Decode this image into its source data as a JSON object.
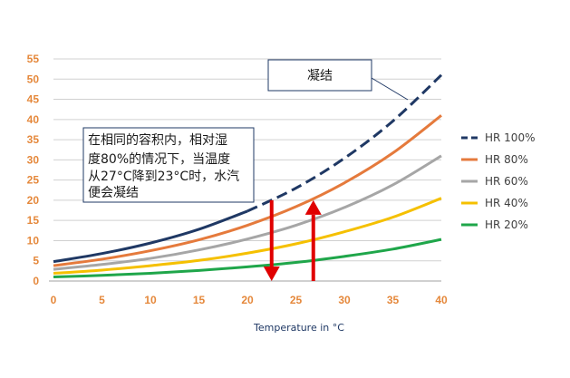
{
  "chart_data": {
    "type": "line",
    "xlabel": "Temperature in °C",
    "ylabel": "",
    "title": "",
    "xlim": [
      0,
      40
    ],
    "ylim": [
      0,
      55
    ],
    "x_ticks": [
      0,
      5,
      10,
      15,
      20,
      25,
      30,
      35,
      40
    ],
    "y_ticks": [
      0,
      5,
      10,
      15,
      20,
      25,
      30,
      35,
      40,
      45,
      50,
      55
    ],
    "grid": "horizontal",
    "legend_position": "right",
    "series": [
      {
        "name": "HR 100%",
        "color": "#1F3864",
        "dash": "solid-then-dashed",
        "x": [
          0,
          5,
          10,
          15,
          20,
          25,
          30,
          35,
          40
        ],
        "values": [
          4.8,
          6.8,
          9.4,
          12.8,
          17.3,
          23.0,
          30.4,
          39.6,
          51.0
        ]
      },
      {
        "name": "HR 80%",
        "color": "#E57A3C",
        "dash": "solid",
        "x": [
          0,
          5,
          10,
          15,
          20,
          25,
          30,
          35,
          40
        ],
        "values": [
          3.8,
          5.4,
          7.5,
          10.2,
          13.8,
          18.4,
          24.3,
          31.7,
          41.0
        ]
      },
      {
        "name": "HR 60%",
        "color": "#A6A6A6",
        "dash": "solid",
        "x": [
          0,
          5,
          10,
          15,
          20,
          25,
          30,
          35,
          40
        ],
        "values": [
          2.9,
          4.1,
          5.6,
          7.7,
          10.4,
          13.8,
          18.2,
          23.8,
          31.0
        ]
      },
      {
        "name": "HR 40%",
        "color": "#F5C000",
        "dash": "solid",
        "x": [
          0,
          5,
          10,
          15,
          20,
          25,
          30,
          35,
          40
        ],
        "values": [
          1.9,
          2.7,
          3.8,
          5.1,
          6.9,
          9.2,
          12.2,
          15.8,
          20.5
        ]
      },
      {
        "name": "HR 20%",
        "color": "#1FA64A",
        "dash": "solid",
        "x": [
          0,
          5,
          10,
          15,
          20,
          25,
          30,
          35,
          40
        ],
        "values": [
          1.0,
          1.4,
          1.9,
          2.6,
          3.5,
          4.6,
          6.1,
          7.9,
          10.3
        ]
      }
    ],
    "annotations": {
      "box1_lines": [
        "在相同的容积内，相对湿",
        "度80%的情况下，当温度",
        "从27°C降到23°C时，水汽",
        "便会凝结"
      ],
      "box2_text": "凝结",
      "arrow_down": {
        "x": 22.5,
        "from": 20,
        "to": 0
      },
      "arrow_up": {
        "x": 26.8,
        "from": 0,
        "to": 20
      },
      "arrow_color": "#E00000"
    }
  }
}
